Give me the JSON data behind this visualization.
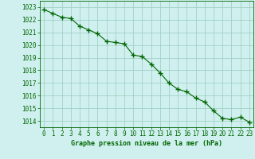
{
  "x": [
    0,
    1,
    2,
    3,
    4,
    5,
    6,
    7,
    8,
    9,
    10,
    11,
    12,
    13,
    14,
    15,
    16,
    17,
    18,
    19,
    20,
    21,
    22,
    23
  ],
  "y": [
    1022.8,
    1022.5,
    1022.2,
    1022.1,
    1021.5,
    1021.2,
    1020.9,
    1020.3,
    1020.2,
    1020.1,
    1019.2,
    1019.1,
    1018.5,
    1017.8,
    1017.0,
    1016.5,
    1016.3,
    1015.8,
    1015.5,
    1014.8,
    1014.2,
    1014.1,
    1014.3,
    1013.9
  ],
  "line_color": "#006600",
  "marker_color": "#006600",
  "bg_color": "#d0f0f0",
  "grid_color": "#99ccbb",
  "text_color": "#006600",
  "xlabel": "Graphe pression niveau de la mer (hPa)",
  "ylim": [
    1013.5,
    1023.5
  ],
  "xlim": [
    -0.5,
    23.5
  ],
  "yticks": [
    1014,
    1015,
    1016,
    1017,
    1018,
    1019,
    1020,
    1021,
    1022,
    1023
  ],
  "xticks": [
    0,
    1,
    2,
    3,
    4,
    5,
    6,
    7,
    8,
    9,
    10,
    11,
    12,
    13,
    14,
    15,
    16,
    17,
    18,
    19,
    20,
    21,
    22,
    23
  ],
  "xlabel_fontsize": 6.0,
  "tick_fontsize": 5.5
}
